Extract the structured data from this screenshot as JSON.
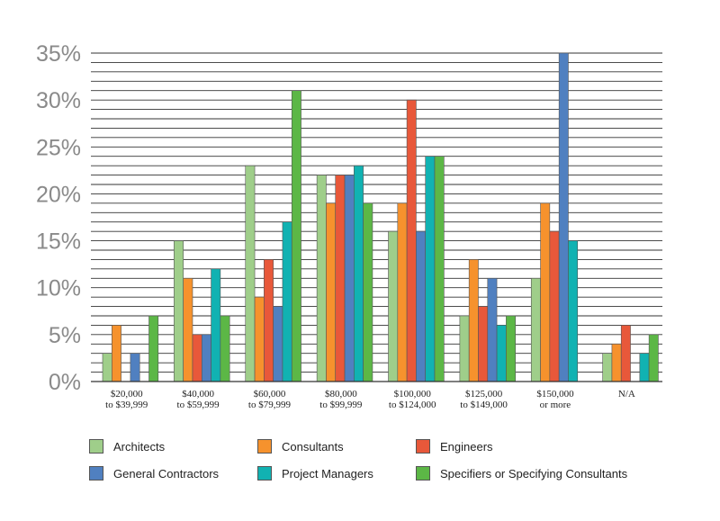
{
  "chart_data": {
    "type": "bar",
    "categories": [
      [
        "$20,000",
        "to $39,999"
      ],
      [
        "$40,000",
        "to $59,999"
      ],
      [
        "$60,000",
        "to $79,999"
      ],
      [
        "$80,000",
        "to $99,999"
      ],
      [
        "$100,000",
        "to $124,000"
      ],
      [
        "$125,000",
        "to $149,000"
      ],
      [
        "$150,000",
        "or more"
      ],
      [
        "N/A"
      ]
    ],
    "series": [
      {
        "name": "Architects",
        "color": "#9fce8a",
        "values": [
          3,
          15,
          23,
          22,
          16,
          7,
          11,
          3
        ]
      },
      {
        "name": "Consultants",
        "color": "#f6922d",
        "values": [
          6,
          11,
          9,
          19,
          19,
          13,
          19,
          4
        ]
      },
      {
        "name": "Engineers",
        "color": "#e8583a",
        "values": [
          0,
          5,
          13,
          22,
          30,
          8,
          16,
          6
        ]
      },
      {
        "name": "General Contractors",
        "color": "#5080c0",
        "values": [
          3,
          5,
          8,
          22,
          16,
          11,
          35,
          0
        ]
      },
      {
        "name": "Project Managers",
        "color": "#11b2b2",
        "values": [
          0,
          12,
          17,
          23,
          24,
          6,
          15,
          3
        ]
      },
      {
        "name": "Specifiers or Specifying Consultants",
        "color": "#5cb746",
        "values": [
          7,
          7,
          31,
          19,
          24,
          7,
          0,
          5
        ]
      }
    ],
    "yticks": [
      "0%",
      "5%",
      "10%",
      "15%",
      "20%",
      "25%",
      "30%",
      "35%"
    ],
    "ylim": [
      0,
      35
    ],
    "grid": true,
    "legend_position": "bottom"
  }
}
